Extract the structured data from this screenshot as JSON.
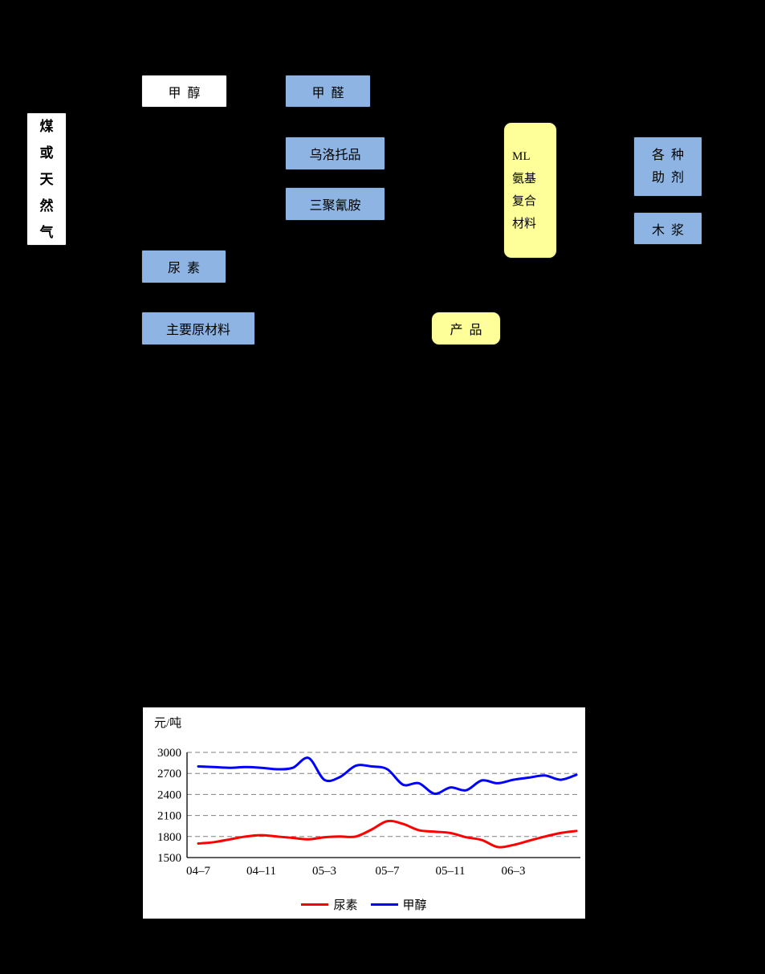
{
  "window": {
    "background": "#000000"
  },
  "diagram": {
    "source": {
      "name": "煤或天然气",
      "chars": [
        "煤",
        "或",
        "天",
        "然",
        "气"
      ]
    },
    "boxes": {
      "methanol": {
        "label": "甲  醇"
      },
      "formaldehyde": {
        "label": "甲  醛"
      },
      "urotropine": {
        "label": "乌洛托品"
      },
      "melamine": {
        "label": "三聚氰胺"
      },
      "ml_amino": {
        "lines": [
          "ML",
          "氨基",
          "复合",
          "材料"
        ]
      },
      "additives": {
        "lines": [
          "各  种",
          "助  剂"
        ]
      },
      "wood_pulp": {
        "label": "木  浆"
      },
      "urea": {
        "label": "尿  素"
      }
    },
    "legend": {
      "raw_material": "主要原材料",
      "product": "产  品"
    },
    "colors": {
      "raw_material_fill": "#8DB4E2",
      "product_fill": "#FFFF99",
      "plain_fill": "#FFFFFF"
    }
  },
  "chart_data": {
    "type": "line",
    "unit_label": "元/吨",
    "x": [
      "04-7",
      "04-8",
      "04-9",
      "04-10",
      "04-11",
      "04-12",
      "05-1",
      "05-2",
      "05-3",
      "05-4",
      "05-5",
      "05-6",
      "05-7",
      "05-8",
      "05-9",
      "05-10",
      "05-11",
      "05-12",
      "06-1",
      "06-2",
      "06-3",
      "06-4",
      "06-5",
      "06-6",
      "06-7"
    ],
    "x_tick_labels": [
      "04–7",
      "04–11",
      "05–3",
      "05–7",
      "05–11",
      "06–3"
    ],
    "x_tick_positions": [
      0,
      4,
      8,
      12,
      16,
      20
    ],
    "y_ticks": [
      1500,
      1800,
      2100,
      2400,
      2700,
      3000
    ],
    "ylim": [
      1500,
      3000
    ],
    "grid": "horizontal-dashed",
    "legend_position": "bottom",
    "series": [
      {
        "name": "尿素",
        "color": "#FF0000",
        "values": [
          1700,
          1720,
          1760,
          1800,
          1820,
          1800,
          1780,
          1760,
          1790,
          1800,
          1800,
          1900,
          2020,
          1980,
          1890,
          1870,
          1850,
          1790,
          1750,
          1650,
          1680,
          1740,
          1800,
          1850,
          1880
        ]
      },
      {
        "name": "甲醇",
        "color": "#0000FF",
        "values": [
          2800,
          2790,
          2780,
          2790,
          2780,
          2760,
          2780,
          2920,
          2610,
          2650,
          2810,
          2800,
          2760,
          2540,
          2560,
          2410,
          2500,
          2460,
          2600,
          2560,
          2610,
          2640,
          2670,
          2610,
          2680
        ]
      }
    ]
  }
}
